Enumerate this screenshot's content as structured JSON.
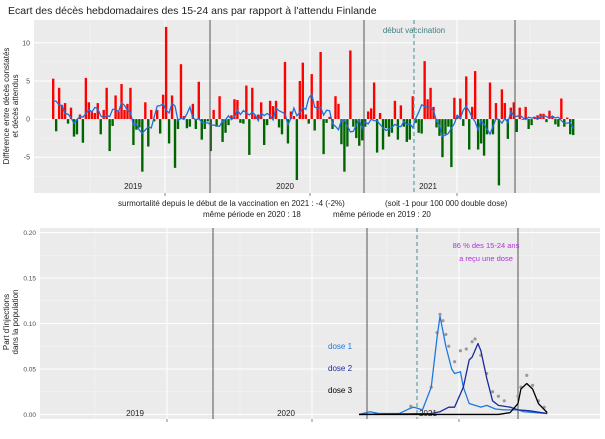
{
  "chart_data": [
    {
      "type": "bar",
      "title": "Ecart des décès hebdomadaires des 15-24 ans par rapport à l'attendu Finlande",
      "ylabel_lines": [
        "Différence entre décès constatés",
        "et décès attendus"
      ],
      "yticks": [
        "10",
        "5",
        "0",
        "-5"
      ],
      "ytick_values": [
        10,
        5,
        0,
        -5
      ],
      "ylim": [
        -9.7,
        13
      ],
      "grid": true,
      "colors": {
        "positive": "#ff0000",
        "negative": "#006400",
        "trend": "#1f6fd8",
        "year_line": "#555555",
        "vaccination_line": "#5f9ea0"
      },
      "annotation": "début vaccination",
      "segments": [
        {
          "year": "2019",
          "values": [
            5.3,
            -1.6,
            4.1,
            1.8,
            2.1,
            -0.6,
            1.5,
            -2.3,
            -2.0,
            0.6,
            -3.1,
            5.4,
            2.2,
            1.0,
            0.8,
            2.1,
            -2.0,
            1.2,
            4.1,
            -4.2,
            -0.9,
            3.1,
            1.0,
            4.6,
            1.2,
            2.0,
            4.1,
            -3.4,
            -1.4,
            -1.1,
            -6.9,
            2.2,
            -3.6,
            1.2,
            -0.3,
            1.2,
            -1.9,
            3.2,
            12.1,
            -3.2,
            3.1,
            -6.4,
            -1.3,
            7.2,
            0.4,
            -1.2,
            -1.0,
            2.0,
            -1.3,
            4.9,
            -2.7,
            -1.3
          ]
        },
        {
          "year": "2020",
          "values": [
            -0.3,
            -4.2,
            1.2,
            -1.0,
            3.0,
            -3.0,
            -1.8,
            -0.8,
            0.5,
            2.6,
            2.5,
            -0.5,
            -0.6,
            4.4,
            -4.7,
            4.1,
            0.5,
            0.6,
            2.2,
            -3.4,
            -0.8,
            2.4,
            1.7,
            2.4,
            -1.1,
            -2.0,
            7.5,
            -3.2,
            1.0,
            0.4,
            -8.0,
            5.0,
            7.4,
            0.6,
            -0.6,
            5.9,
            -1.5,
            2.4,
            8.8,
            -4.6,
            -0.5,
            0.3,
            -1.3,
            3.0,
            2.0,
            -3.3,
            -6.9,
            -3.6,
            9.0,
            -1.0,
            -2.5,
            -3.5
          ]
        },
        {
          "year": "2021",
          "values": [
            -2.8,
            -1.0,
            1.0,
            1.4,
            4.8,
            -4.4,
            0.8,
            -4.0,
            -1.2,
            -2.3,
            -1.8,
            2.4,
            -2.7,
            1.8,
            -1.0,
            -3.0,
            -2.7,
            3.0,
            -0.5,
            -1.8,
            -1.9,
            7.6,
            2.6,
            4.1,
            1.6,
            -1.1,
            -2.2,
            -5.0,
            -2.0,
            -1.0,
            -6.3,
            2.8,
            0.5,
            2.7,
            -0.9,
            5.6,
            -4.0,
            1.6,
            6.3,
            -4.0,
            -3.2,
            -4.8,
            -2.0,
            4.8,
            -2.0,
            2.1,
            -8.7,
            3.9,
            2.1,
            -2.6,
            1.5,
            2.2
          ]
        },
        {
          "year": "",
          "values": [
            -1.7,
            1.5,
            -0.1,
            1.6,
            -1.3,
            -0.8,
            0.3,
            0.5,
            0.7,
            0.7,
            -0.4,
            1.1,
            0.4,
            -0.7,
            -1.0,
            2.7,
            -1.0,
            0.2,
            -2.0,
            -2.1
          ]
        }
      ],
      "year_labels": [
        "2019",
        "2020",
        "2021"
      ],
      "footer": {
        "line1_left": "surmortalité depuis le début de la vaccination en 2021 : -4  (-2%)",
        "line1_right": "(soit -1 pour 100 000 double dose)",
        "line2_left": "même période en 2020 : 18",
        "line2_right": "même période en 2019 : 20"
      }
    },
    {
      "type": "line",
      "ylabel_lines": [
        "Part d'injections",
        "dans la population"
      ],
      "yticks": [
        "0.20",
        "0.15",
        "0.10",
        "0.05",
        "0.00"
      ],
      "ytick_values": [
        0.2,
        0.15,
        0.1,
        0.05,
        0.0
      ],
      "ylim": [
        -0.005,
        0.205
      ],
      "grid": true,
      "year_labels": [
        "2019",
        "2020",
        "2021"
      ],
      "annotation_lines": [
        "86 % des 15-24 ans",
        "a reçu une dose"
      ],
      "annotation_color": "#b030d8",
      "series": [
        {
          "name": "dose 1",
          "color": "#1f78e0",
          "points": [
            [
              "2020-W51",
              0
            ],
            [
              "2021-W02",
              0.003
            ],
            [
              "2021-W05",
              0.001
            ],
            [
              "2021-W12",
              0.001
            ],
            [
              "2021-W16",
              0.007
            ],
            [
              "2021-W17",
              0.008
            ],
            [
              "2021-W20",
              0.005
            ],
            [
              "2021-W23",
              0.03
            ],
            [
              "2021-W25",
              0.085
            ],
            [
              "2021-W26",
              0.108
            ],
            [
              "2021-W28",
              0.075
            ],
            [
              "2021-W30",
              0.05
            ],
            [
              "2021-W31",
              0.045
            ],
            [
              "2021-W33",
              0.047
            ],
            [
              "2021-W34",
              0.03
            ],
            [
              "2021-W36",
              0.012
            ],
            [
              "2021-W40",
              0.008
            ],
            [
              "2021-W42",
              0.01
            ],
            [
              "2021-W45",
              0.006
            ],
            [
              "2021-W48",
              0.005
            ],
            [
              "2022-W01",
              0.005
            ],
            [
              "2022-W03",
              0.003
            ],
            [
              "2022-W11",
              0.001
            ]
          ]
        },
        {
          "name": "dose 2",
          "color": "#1a2a9a",
          "points": [
            [
              "2020-W51",
              0
            ],
            [
              "2021-W23",
              0.001
            ],
            [
              "2021-W26",
              0.003
            ],
            [
              "2021-W29",
              0.008
            ],
            [
              "2021-W31",
              0.008
            ],
            [
              "2021-W34",
              0.03
            ],
            [
              "2021-W36",
              0.06
            ],
            [
              "2021-W37",
              0.063
            ],
            [
              "2021-W39",
              0.078
            ],
            [
              "2021-W40",
              0.07
            ],
            [
              "2021-W42",
              0.04
            ],
            [
              "2021-W44",
              0.015
            ],
            [
              "2021-W46",
              0.01
            ],
            [
              "2021-W50",
              0.008
            ],
            [
              "2022-W01",
              0.005
            ],
            [
              "2022-W05",
              0.004
            ],
            [
              "2022-W11",
              0.001
            ]
          ]
        },
        {
          "name": "dose 3",
          "color": "#000000",
          "points": [
            [
              "2020-W51",
              0
            ],
            [
              "2021-W46",
              0
            ],
            [
              "2021-W50",
              0.002
            ],
            [
              "2022-W01",
              0.012
            ],
            [
              "2022-W02",
              0.028
            ],
            [
              "2022-W04",
              0.034
            ],
            [
              "2022-W06",
              0.028
            ],
            [
              "2022-W08",
              0.012
            ],
            [
              "2022-W11",
              0.002
            ]
          ]
        }
      ],
      "dots_color": "#9a9a9a",
      "dots": [
        [
          "2021-W16",
          0.009
        ],
        [
          "2021-W23",
          0.03
        ],
        [
          "2021-W25",
          0.09
        ],
        [
          "2021-W26",
          0.11
        ],
        [
          "2021-W27",
          0.103
        ],
        [
          "2021-W28",
          0.088
        ],
        [
          "2021-W29",
          0.075
        ],
        [
          "2021-W31",
          0.058
        ],
        [
          "2021-W33",
          0.07
        ],
        [
          "2021-W35",
          0.072
        ],
        [
          "2021-W37",
          0.08
        ],
        [
          "2021-W38",
          0.083
        ],
        [
          "2021-W40",
          0.065
        ],
        [
          "2021-W42",
          0.045
        ],
        [
          "2021-W44",
          0.025
        ],
        [
          "2021-W46",
          0.02
        ],
        [
          "2021-W48",
          0.015
        ],
        [
          "2022-W01",
          0.02
        ],
        [
          "2022-W02",
          0.03
        ],
        [
          "2022-W04",
          0.043
        ],
        [
          "2022-W06",
          0.032
        ],
        [
          "2022-W08",
          0.015
        ],
        [
          "2022-W10",
          0.008
        ]
      ]
    }
  ]
}
